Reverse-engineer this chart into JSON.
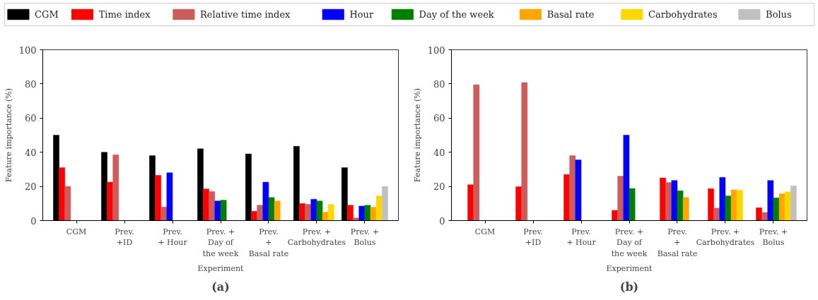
{
  "chart_data": [
    {
      "type": "bar",
      "title": "(a)",
      "xlabel": "Experiment",
      "ylabel": "Feature importance (%)",
      "categories": [
        "CGM",
        "Prev.\n+ID",
        "Prev.\n+ Hour",
        "Prev. +\nDay of\nthe week",
        "Prev.\n+\nBasal rate",
        "Prev. +\nCarbohydrates",
        "Prev. +\nBolus"
      ],
      "ylim": [
        0,
        100
      ],
      "yticks": [
        0,
        20,
        40,
        60,
        80,
        100
      ],
      "grid": false,
      "legend": "top",
      "series": [
        {
          "name": "CGM",
          "color": "#000000",
          "values": [
            50,
            40,
            38,
            42,
            39,
            43.5,
            31
          ]
        },
        {
          "name": "Time index",
          "color": "#ff0000",
          "values": [
            31,
            22.5,
            26.5,
            18.5,
            5.5,
            10,
            9
          ]
        },
        {
          "name": "Relative time index",
          "color": "#cd5c5c",
          "values": [
            20,
            38.5,
            8,
            17,
            9,
            9.5,
            1.5
          ]
        },
        {
          "name": "Hour",
          "color": "#0000ff",
          "values": [
            0,
            0,
            28,
            11.5,
            22.5,
            12.5,
            8.5
          ]
        },
        {
          "name": "Day of the week",
          "color": "#008000",
          "values": [
            0,
            0,
            0,
            12,
            13.5,
            11.5,
            9
          ]
        },
        {
          "name": "Basal rate",
          "color": "#ffa500",
          "values": [
            0,
            0,
            0,
            0,
            11.5,
            5,
            7.8
          ]
        },
        {
          "name": "Carbohydrates",
          "color": "#ffd700",
          "values": [
            0,
            0,
            0,
            0,
            0,
            9.5,
            14.5
          ]
        },
        {
          "name": "Bolus",
          "color": "#c0c0c0",
          "values": [
            0,
            0,
            0,
            0,
            0,
            0,
            20
          ]
        }
      ]
    },
    {
      "type": "bar",
      "title": "(b)",
      "xlabel": "Experiment",
      "ylabel": "Feature importance (%)",
      "categories": [
        "CGM",
        "Prev.\n+ID",
        "Prev.\n+ Hour",
        "Prev. +\nDay of\nthe week",
        "Prev.\n+\nBasal rate",
        "Prev. +\nCarbohydrates",
        "Prev. +\nBolus"
      ],
      "ylim": [
        0,
        100
      ],
      "yticks": [
        0,
        20,
        40,
        60,
        80,
        100
      ],
      "grid": false,
      "series": [
        {
          "color": "#000000",
          "values": [
            0,
            0,
            0,
            0,
            0,
            0,
            0
          ]
        },
        {
          "color": "#ff0000",
          "values": [
            21,
            19.8,
            27,
            6,
            25,
            18.7,
            7.5
          ]
        },
        {
          "color": "#cd5c5c",
          "values": [
            79.5,
            80.8,
            38,
            26,
            22.3,
            7.3,
            4.8
          ]
        },
        {
          "color": "#0000ff",
          "values": [
            0,
            0,
            35.5,
            50,
            23.5,
            25.3,
            23.5
          ]
        },
        {
          "color": "#008000",
          "values": [
            0,
            0,
            0,
            18.8,
            17.5,
            14.5,
            13.3
          ]
        },
        {
          "color": "#ffa500",
          "values": [
            0,
            0,
            0,
            0,
            13.5,
            18,
            15.7
          ]
        },
        {
          "color": "#ffd700",
          "values": [
            0,
            0,
            0,
            0,
            0,
            17.8,
            16.8
          ]
        },
        {
          "color": "#c0c0c0",
          "values": [
            0,
            0,
            0,
            0,
            0,
            0,
            20.3
          ]
        }
      ]
    }
  ]
}
